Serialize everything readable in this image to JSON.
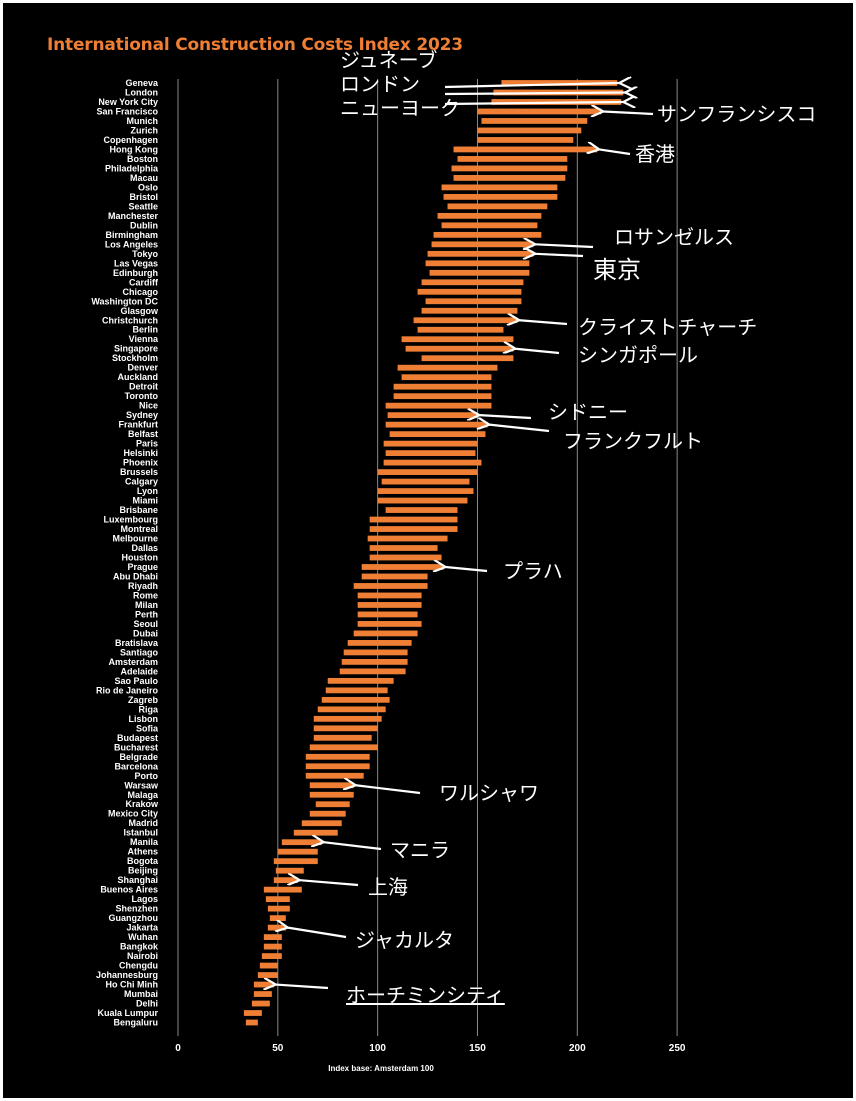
{
  "chart_data": {
    "type": "bar",
    "subtype": "floating-range-bar",
    "title": "International Construction Costs Index 2023",
    "xlabel": "Index base: Amsterdam 100",
    "xlim": [
      0,
      250
    ],
    "xticks": [
      0,
      50,
      100,
      150,
      200,
      250
    ],
    "grid": "vertical",
    "bar_color": "#ee7f34",
    "categories": [
      "Geneva",
      "London",
      "New York City",
      "San Francisco",
      "Munich",
      "Zurich",
      "Copenhagen",
      "Hong Kong",
      "Boston",
      "Philadelphia",
      "Macau",
      "Oslo",
      "Bristol",
      "Seattle",
      "Manchester",
      "Dublin",
      "Birmingham",
      "Los Angeles",
      "Tokyo",
      "Las Vegas",
      "Edinburgh",
      "Cardiff",
      "Chicago",
      "Washington DC",
      "Glasgow",
      "Christchurch",
      "Berlin",
      "Vienna",
      "Singapore",
      "Stockholm",
      "Denver",
      "Auckland",
      "Detroit",
      "Toronto",
      "Nice",
      "Sydney",
      "Frankfurt",
      "Belfast",
      "Paris",
      "Helsinki",
      "Phoenix",
      "Brussels",
      "Calgary",
      "Lyon",
      "Miami",
      "Brisbane",
      "Luxembourg",
      "Montreal",
      "Melbourne",
      "Dallas",
      "Houston",
      "Prague",
      "Abu Dhabi",
      "Riyadh",
      "Rome",
      "Milan",
      "Perth",
      "Seoul",
      "Dubai",
      "Bratislava",
      "Santiago",
      "Amsterdam",
      "Adelaide",
      "Sao Paulo",
      "Rio de Janeiro",
      "Zagreb",
      "Riga",
      "Lisbon",
      "Sofia",
      "Budapest",
      "Bucharest",
      "Belgrade",
      "Barcelona",
      "Porto",
      "Warsaw",
      "Malaga",
      "Krakow",
      "Mexico City",
      "Madrid",
      "Istanbul",
      "Manila",
      "Athens",
      "Bogota",
      "Beijing",
      "Shanghai",
      "Buenos Aires",
      "Lagos",
      "Shenzhen",
      "Guangzhou",
      "Jakarta",
      "Wuhan",
      "Bangkok",
      "Nairobi",
      "Chengdu",
      "Johannesburg",
      "Ho Chi Minh",
      "Mumbai",
      "Delhi",
      "Kuala Lumpur",
      "Bengaluru"
    ],
    "ranges": [
      [
        162,
        220
      ],
      [
        158,
        223
      ],
      [
        157,
        222
      ],
      [
        150,
        212
      ],
      [
        152,
        205
      ],
      [
        150,
        202
      ],
      [
        150,
        198
      ],
      [
        138,
        210
      ],
      [
        140,
        195
      ],
      [
        137,
        195
      ],
      [
        138,
        194
      ],
      [
        132,
        190
      ],
      [
        133,
        190
      ],
      [
        135,
        185
      ],
      [
        130,
        182
      ],
      [
        132,
        180
      ],
      [
        128,
        182
      ],
      [
        127,
        178
      ],
      [
        125,
        178
      ],
      [
        124,
        176
      ],
      [
        126,
        176
      ],
      [
        122,
        173
      ],
      [
        120,
        172
      ],
      [
        124,
        172
      ],
      [
        122,
        170
      ],
      [
        118,
        170
      ],
      [
        120,
        163
      ],
      [
        112,
        168
      ],
      [
        114,
        168
      ],
      [
        122,
        168
      ],
      [
        110,
        160
      ],
      [
        112,
        157
      ],
      [
        108,
        157
      ],
      [
        108,
        157
      ],
      [
        104,
        157
      ],
      [
        105,
        150
      ],
      [
        104,
        155
      ],
      [
        106,
        154
      ],
      [
        103,
        150
      ],
      [
        104,
        149
      ],
      [
        103,
        152
      ],
      [
        100,
        150
      ],
      [
        102,
        146
      ],
      [
        100,
        148
      ],
      [
        100,
        145
      ],
      [
        104,
        140
      ],
      [
        96,
        140
      ],
      [
        96,
        140
      ],
      [
        95,
        135
      ],
      [
        96,
        130
      ],
      [
        96,
        132
      ],
      [
        92,
        133
      ],
      [
        92,
        125
      ],
      [
        88,
        125
      ],
      [
        90,
        122
      ],
      [
        90,
        122
      ],
      [
        90,
        120
      ],
      [
        90,
        122
      ],
      [
        88,
        120
      ],
      [
        85,
        117
      ],
      [
        83,
        115
      ],
      [
        82,
        115
      ],
      [
        81,
        114
      ],
      [
        75,
        108
      ],
      [
        74,
        105
      ],
      [
        72,
        106
      ],
      [
        70,
        104
      ],
      [
        68,
        102
      ],
      [
        68,
        100
      ],
      [
        68,
        97
      ],
      [
        66,
        100
      ],
      [
        64,
        96
      ],
      [
        64,
        96
      ],
      [
        64,
        93
      ],
      [
        66,
        88
      ],
      [
        66,
        88
      ],
      [
        69,
        86
      ],
      [
        66,
        84
      ],
      [
        62,
        82
      ],
      [
        58,
        80
      ],
      [
        52,
        72
      ],
      [
        50,
        70
      ],
      [
        48,
        70
      ],
      [
        49,
        63
      ],
      [
        48,
        60
      ],
      [
        43,
        62
      ],
      [
        44,
        56
      ],
      [
        45,
        56
      ],
      [
        46,
        54
      ],
      [
        45,
        54
      ],
      [
        43,
        52
      ],
      [
        43,
        52
      ],
      [
        42,
        52
      ],
      [
        41,
        50
      ],
      [
        40,
        50
      ],
      [
        38,
        48
      ],
      [
        38,
        47
      ],
      [
        37,
        46
      ],
      [
        33,
        42
      ],
      [
        34,
        40
      ]
    ],
    "annotations": [
      {
        "city": "Geneva",
        "label": "ジュネーブ"
      },
      {
        "city": "London",
        "label": "ロンドン"
      },
      {
        "city": "New York City",
        "label": "ニューヨーク"
      },
      {
        "city": "San Francisco",
        "label": "サンフランシスコ"
      },
      {
        "city": "Hong Kong",
        "label": "香港"
      },
      {
        "city": "Los Angeles",
        "label": "ロサンゼルス"
      },
      {
        "city": "Tokyo",
        "label": "東京"
      },
      {
        "city": "Christchurch",
        "label": "クライストチャーチ"
      },
      {
        "city": "Singapore",
        "label": "シンガポール"
      },
      {
        "city": "Sydney",
        "label": "シドニー"
      },
      {
        "city": "Frankfurt",
        "label": "フランクフルト"
      },
      {
        "city": "Prague",
        "label": "プラハ"
      },
      {
        "city": "Warsaw",
        "label": "ワルシャワ"
      },
      {
        "city": "Manila",
        "label": "マニラ"
      },
      {
        "city": "Shanghai",
        "label": "上海"
      },
      {
        "city": "Jakarta",
        "label": "ジャカルタ"
      },
      {
        "city": "Ho Chi Minh",
        "label": "ホーチミンシティ"
      }
    ]
  }
}
